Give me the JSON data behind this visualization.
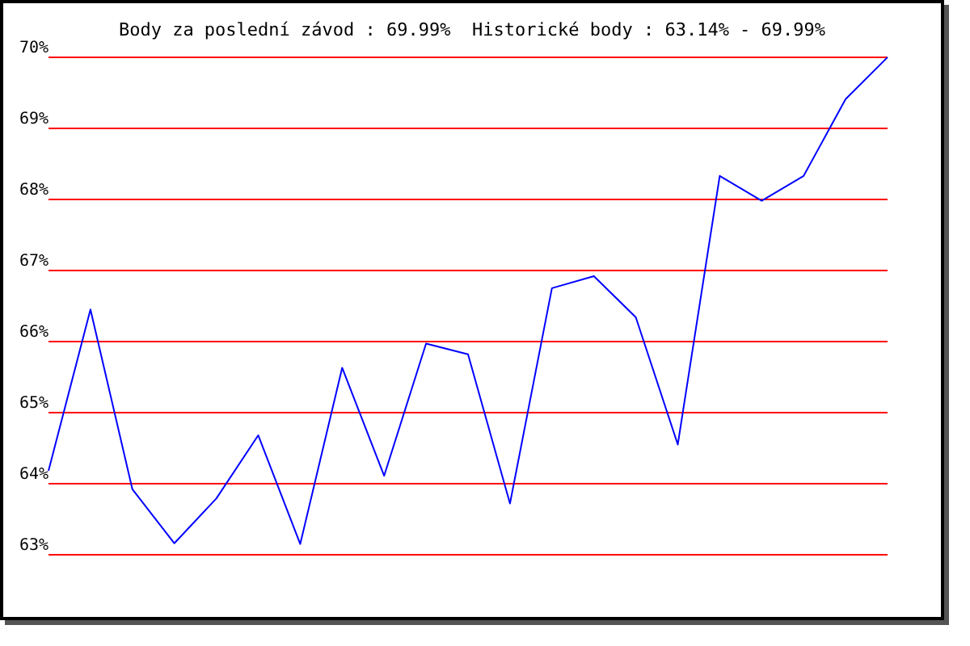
{
  "chart_data": {
    "type": "line",
    "title": "Body za poslední závod : 69.99%  Historické body : 63.14% - 69.99%",
    "categories": [
      null,
      null,
      null,
      null,
      null,
      null,
      null,
      null,
      null,
      null,
      null,
      null,
      null,
      null,
      null,
      null,
      null,
      null,
      null,
      null,
      null
    ],
    "series": [
      {
        "color": "#0000ff",
        "values": [
          64.17,
          66.44,
          63.91,
          63.15,
          63.78,
          64.67,
          63.14,
          65.62,
          64.1,
          65.96,
          65.81,
          63.71,
          66.74,
          66.91,
          66.33,
          64.54,
          68.32,
          67.97,
          68.32,
          69.4,
          69.99
        ]
      }
    ],
    "ylim": [
      63,
      70
    ],
    "yticks": [
      {
        "value": 63,
        "label": "63%"
      },
      {
        "value": 64,
        "label": "64%"
      },
      {
        "value": 65,
        "label": "65%"
      },
      {
        "value": 66,
        "label": "66%"
      },
      {
        "value": 67,
        "label": "67%"
      },
      {
        "value": 68,
        "label": "68%"
      },
      {
        "value": 69,
        "label": "69%"
      },
      {
        "value": 70,
        "label": "70%"
      }
    ],
    "grid": "y",
    "marker": "none",
    "line_style": "solid"
  }
}
